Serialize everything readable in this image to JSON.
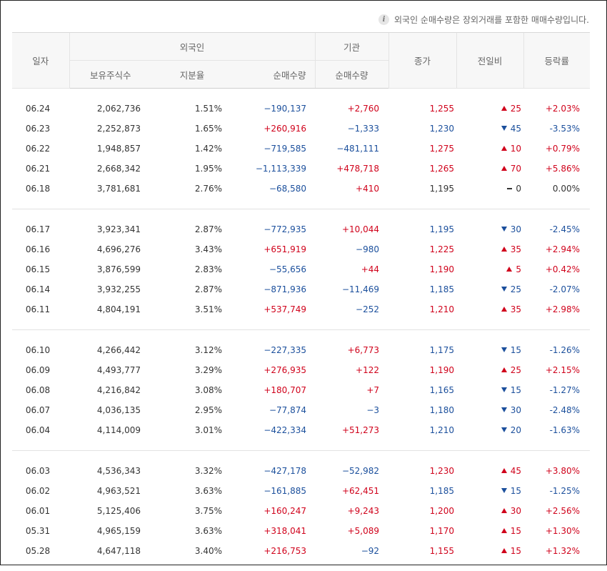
{
  "notice": "외국인 순매수량은 장외거래를 포함한 매매수량입니다.",
  "header": {
    "date": "일자",
    "foreign": "외국인",
    "institution": "기관",
    "close": "종가",
    "diff": "전일비",
    "rate": "등락률",
    "holdings": "보유주식수",
    "ratio": "지분율",
    "foreign_net": "순매수량",
    "inst_net": "순매수량"
  },
  "colors": {
    "up": "#d0021b",
    "down": "#1b4f9c",
    "flat": "#333333"
  },
  "groups": [
    [
      {
        "date": "06.24",
        "holdings": "2,062,736",
        "ratio": "1.51%",
        "foreign_net": "−190,137",
        "inst_net": "+2,760",
        "close": "1,255",
        "diff": "25",
        "dir": "up",
        "rate": "+2.03%"
      },
      {
        "date": "06.23",
        "holdings": "2,252,873",
        "ratio": "1.65%",
        "foreign_net": "+260,916",
        "inst_net": "−1,333",
        "close": "1,230",
        "diff": "45",
        "dir": "down",
        "rate": "-3.53%"
      },
      {
        "date": "06.22",
        "holdings": "1,948,857",
        "ratio": "1.42%",
        "foreign_net": "−719,585",
        "inst_net": "−481,111",
        "close": "1,275",
        "diff": "10",
        "dir": "up",
        "rate": "+0.79%"
      },
      {
        "date": "06.21",
        "holdings": "2,668,342",
        "ratio": "1.95%",
        "foreign_net": "−1,113,339",
        "inst_net": "+478,718",
        "close": "1,265",
        "diff": "70",
        "dir": "up",
        "rate": "+5.86%"
      },
      {
        "date": "06.18",
        "holdings": "3,781,681",
        "ratio": "2.76%",
        "foreign_net": "−68,580",
        "inst_net": "+410",
        "close": "1,195",
        "diff": "0",
        "dir": "flat",
        "rate": "0.00%"
      }
    ],
    [
      {
        "date": "06.17",
        "holdings": "3,923,341",
        "ratio": "2.87%",
        "foreign_net": "−772,935",
        "inst_net": "+10,044",
        "close": "1,195",
        "diff": "30",
        "dir": "down",
        "rate": "-2.45%"
      },
      {
        "date": "06.16",
        "holdings": "4,696,276",
        "ratio": "3.43%",
        "foreign_net": "+651,919",
        "inst_net": "−980",
        "close": "1,225",
        "diff": "35",
        "dir": "up",
        "rate": "+2.94%"
      },
      {
        "date": "06.15",
        "holdings": "3,876,599",
        "ratio": "2.83%",
        "foreign_net": "−55,656",
        "inst_net": "+44",
        "close": "1,190",
        "diff": "5",
        "dir": "up",
        "rate": "+0.42%"
      },
      {
        "date": "06.14",
        "holdings": "3,932,255",
        "ratio": "2.87%",
        "foreign_net": "−871,936",
        "inst_net": "−11,469",
        "close": "1,185",
        "diff": "25",
        "dir": "down",
        "rate": "-2.07%"
      },
      {
        "date": "06.11",
        "holdings": "4,804,191",
        "ratio": "3.51%",
        "foreign_net": "+537,749",
        "inst_net": "−252",
        "close": "1,210",
        "diff": "35",
        "dir": "up",
        "rate": "+2.98%"
      }
    ],
    [
      {
        "date": "06.10",
        "holdings": "4,266,442",
        "ratio": "3.12%",
        "foreign_net": "−227,335",
        "inst_net": "+6,773",
        "close": "1,175",
        "diff": "15",
        "dir": "down",
        "rate": "-1.26%"
      },
      {
        "date": "06.09",
        "holdings": "4,493,777",
        "ratio": "3.29%",
        "foreign_net": "+276,935",
        "inst_net": "+122",
        "close": "1,190",
        "diff": "25",
        "dir": "up",
        "rate": "+2.15%"
      },
      {
        "date": "06.08",
        "holdings": "4,216,842",
        "ratio": "3.08%",
        "foreign_net": "+180,707",
        "inst_net": "+7",
        "close": "1,165",
        "diff": "15",
        "dir": "down",
        "rate": "-1.27%"
      },
      {
        "date": "06.07",
        "holdings": "4,036,135",
        "ratio": "2.95%",
        "foreign_net": "−77,874",
        "inst_net": "−3",
        "close": "1,180",
        "diff": "30",
        "dir": "down",
        "rate": "-2.48%"
      },
      {
        "date": "06.04",
        "holdings": "4,114,009",
        "ratio": "3.01%",
        "foreign_net": "−422,334",
        "inst_net": "+51,273",
        "close": "1,210",
        "diff": "20",
        "dir": "down",
        "rate": "-1.63%"
      }
    ],
    [
      {
        "date": "06.03",
        "holdings": "4,536,343",
        "ratio": "3.32%",
        "foreign_net": "−427,178",
        "inst_net": "−52,982",
        "close": "1,230",
        "diff": "45",
        "dir": "up",
        "rate": "+3.80%"
      },
      {
        "date": "06.02",
        "holdings": "4,963,521",
        "ratio": "3.63%",
        "foreign_net": "−161,885",
        "inst_net": "+62,451",
        "close": "1,185",
        "diff": "15",
        "dir": "down",
        "rate": "-1.25%"
      },
      {
        "date": "06.01",
        "holdings": "5,125,406",
        "ratio": "3.75%",
        "foreign_net": "+160,247",
        "inst_net": "+9,243",
        "close": "1,200",
        "diff": "30",
        "dir": "up",
        "rate": "+2.56%"
      },
      {
        "date": "05.31",
        "holdings": "4,965,159",
        "ratio": "3.63%",
        "foreign_net": "+318,041",
        "inst_net": "+5,089",
        "close": "1,170",
        "diff": "15",
        "dir": "up",
        "rate": "+1.30%"
      },
      {
        "date": "05.28",
        "holdings": "4,647,118",
        "ratio": "3.40%",
        "foreign_net": "+216,753",
        "inst_net": "−92",
        "close": "1,155",
        "diff": "15",
        "dir": "up",
        "rate": "+1.32%"
      }
    ]
  ]
}
